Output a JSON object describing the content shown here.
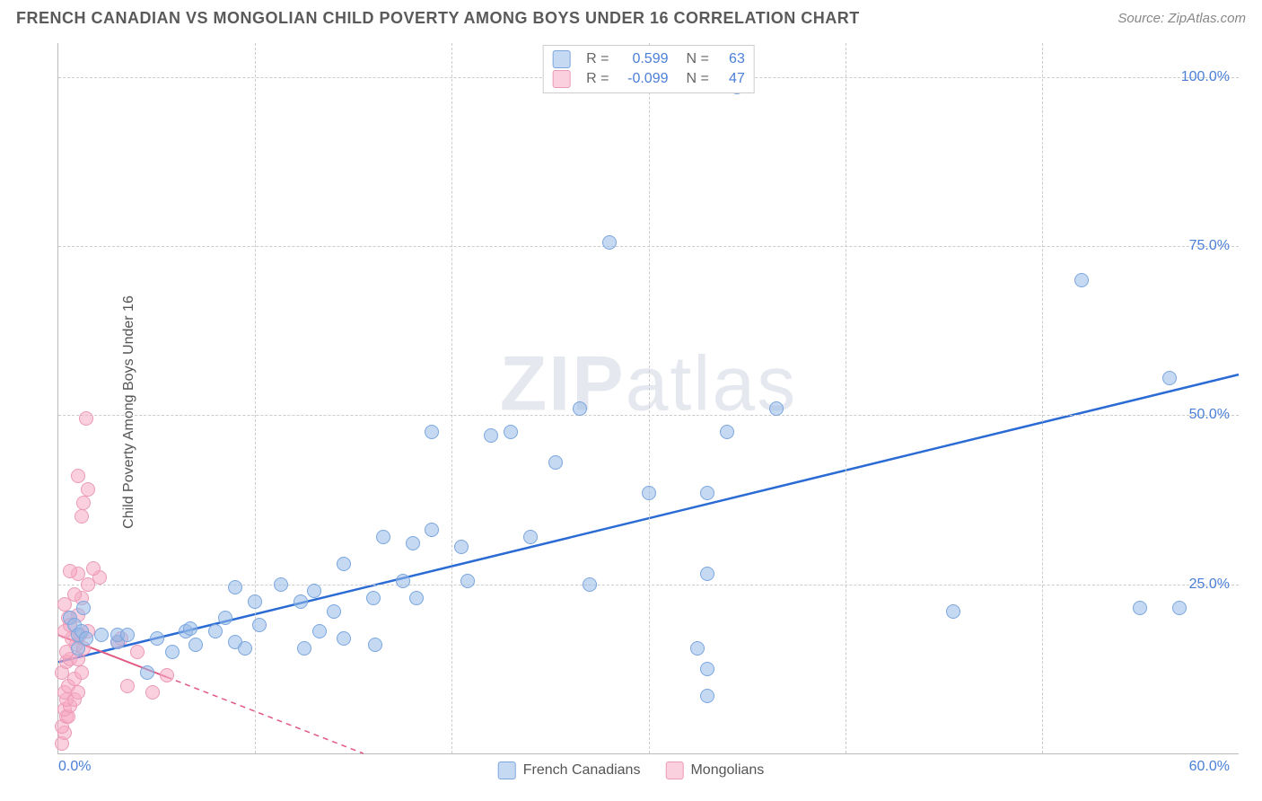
{
  "title": "FRENCH CANADIAN VS MONGOLIAN CHILD POVERTY AMONG BOYS UNDER 16 CORRELATION CHART",
  "source_label": "Source:",
  "source_name": "ZipAtlas.com",
  "ylabel": "Child Poverty Among Boys Under 16",
  "watermark": "ZIPatlas",
  "legend_bottom": {
    "series1": "French Canadians",
    "series2": "Mongolians"
  },
  "legend_top": {
    "rows": [
      {
        "swatch": "s1",
        "r_label": "R =",
        "r_val": "0.599",
        "n_label": "N =",
        "n_val": "63"
      },
      {
        "swatch": "s2",
        "r_label": "R =",
        "r_val": "-0.099",
        "n_label": "N =",
        "n_val": "47"
      }
    ]
  },
  "chart": {
    "type": "scatter",
    "xlim": [
      0,
      60
    ],
    "ylim": [
      0,
      105
    ],
    "xticks_minor": [
      10,
      20,
      30,
      40,
      50
    ],
    "xtick_labels": {
      "0": "0.0%",
      "60": "60.0%"
    },
    "yticks": [
      25,
      50,
      75,
      100
    ],
    "ytick_labels": {
      "25": "25.0%",
      "50": "50.0%",
      "75": "75.0%",
      "100": "100.0%"
    },
    "background_color": "#ffffff",
    "grid_color": "#cccccc",
    "axis_color": "#bbbbbb",
    "tick_label_color": "#4a7fd8",
    "marker_radius": 8,
    "series": {
      "s1": {
        "name": "French Canadians",
        "fill": "rgba(150,185,232,0.55)",
        "stroke": "#7ba6de",
        "line_color": "#2a6bd4",
        "line_width": 2.5,
        "trend": {
          "x1": 0,
          "y1": 13.5,
          "x2": 60,
          "y2": 56.0,
          "dashed": false
        },
        "points": [
          [
            0.6,
            20
          ],
          [
            0.8,
            19
          ],
          [
            1.0,
            17.5
          ],
          [
            1.2,
            18
          ],
          [
            1.3,
            21.5
          ],
          [
            1.0,
            15.5
          ],
          [
            1.4,
            17
          ],
          [
            2.2,
            17.5
          ],
          [
            3.0,
            16.5
          ],
          [
            3.0,
            17.5
          ],
          [
            3.5,
            17.5
          ],
          [
            4.5,
            12
          ],
          [
            5.0,
            17
          ],
          [
            5.8,
            15
          ],
          [
            6.5,
            18
          ],
          [
            6.7,
            18.5
          ],
          [
            7.0,
            16
          ],
          [
            8.0,
            18
          ],
          [
            8.5,
            20
          ],
          [
            9.0,
            24.5
          ],
          [
            9.0,
            16.5
          ],
          [
            9.5,
            15.5
          ],
          [
            10.0,
            22.5
          ],
          [
            10.2,
            19
          ],
          [
            11.3,
            25
          ],
          [
            12.3,
            22.5
          ],
          [
            12.5,
            15.5
          ],
          [
            13.0,
            24
          ],
          [
            13.3,
            18
          ],
          [
            14.0,
            21
          ],
          [
            14.5,
            28
          ],
          [
            14.5,
            17
          ],
          [
            16.0,
            23
          ],
          [
            16.1,
            16
          ],
          [
            16.5,
            32
          ],
          [
            17.5,
            25.5
          ],
          [
            18.0,
            31
          ],
          [
            18.2,
            23
          ],
          [
            19.0,
            47.5
          ],
          [
            19.0,
            33
          ],
          [
            20.5,
            30.5
          ],
          [
            20.8,
            25.5
          ],
          [
            22.0,
            47
          ],
          [
            23.0,
            47.5
          ],
          [
            24.0,
            32
          ],
          [
            25.3,
            43
          ],
          [
            26.5,
            51
          ],
          [
            27.0,
            25
          ],
          [
            28.0,
            75.5
          ],
          [
            30.0,
            38.5
          ],
          [
            32.5,
            15.5
          ],
          [
            33.0,
            38.5
          ],
          [
            33.0,
            26.5
          ],
          [
            33.0,
            8.5
          ],
          [
            33.0,
            12.5
          ],
          [
            34.0,
            47.5
          ],
          [
            34.5,
            98.5
          ],
          [
            36.5,
            51
          ],
          [
            45.5,
            21
          ],
          [
            52.0,
            70
          ],
          [
            55.0,
            21.5
          ],
          [
            56.5,
            55.5
          ],
          [
            57.0,
            21.5
          ]
        ]
      },
      "s2": {
        "name": "Mongolians",
        "fill": "rgba(245,170,195,0.55)",
        "stroke": "#ec9ab5",
        "line_color": "#e05a82",
        "line_width": 2,
        "trend": {
          "x1": 0,
          "y1": 17.5,
          "x2": 15.5,
          "y2": 0,
          "dashed_extension": true
        },
        "points": [
          [
            0.2,
            1.5
          ],
          [
            0.3,
            3
          ],
          [
            0.2,
            4
          ],
          [
            0.4,
            5.5
          ],
          [
            0.5,
            5.5
          ],
          [
            0.3,
            6.5
          ],
          [
            0.6,
            7
          ],
          [
            0.4,
            8
          ],
          [
            0.8,
            8
          ],
          [
            0.3,
            9
          ],
          [
            0.5,
            10
          ],
          [
            1.0,
            9
          ],
          [
            0.8,
            11
          ],
          [
            0.2,
            12
          ],
          [
            0.4,
            13.5
          ],
          [
            1.2,
            12
          ],
          [
            0.6,
            14
          ],
          [
            1.0,
            14
          ],
          [
            0.4,
            15
          ],
          [
            0.9,
            16
          ],
          [
            1.3,
            15.5
          ],
          [
            0.7,
            17
          ],
          [
            1.1,
            17.5
          ],
          [
            0.3,
            18
          ],
          [
            0.6,
            19
          ],
          [
            1.5,
            18
          ],
          [
            0.5,
            20
          ],
          [
            1.0,
            20.5
          ],
          [
            0.3,
            22
          ],
          [
            1.2,
            23
          ],
          [
            0.8,
            23.5
          ],
          [
            1.5,
            25
          ],
          [
            2.1,
            26
          ],
          [
            1.0,
            26.5
          ],
          [
            0.6,
            27
          ],
          [
            1.8,
            27.3
          ],
          [
            1.2,
            35
          ],
          [
            1.3,
            37
          ],
          [
            1.5,
            39
          ],
          [
            1.0,
            41
          ],
          [
            1.4,
            49.5
          ],
          [
            3.0,
            16.5
          ],
          [
            3.5,
            10
          ],
          [
            3.2,
            17
          ],
          [
            4.0,
            15
          ],
          [
            4.8,
            9
          ],
          [
            5.5,
            11.5
          ]
        ]
      }
    }
  }
}
